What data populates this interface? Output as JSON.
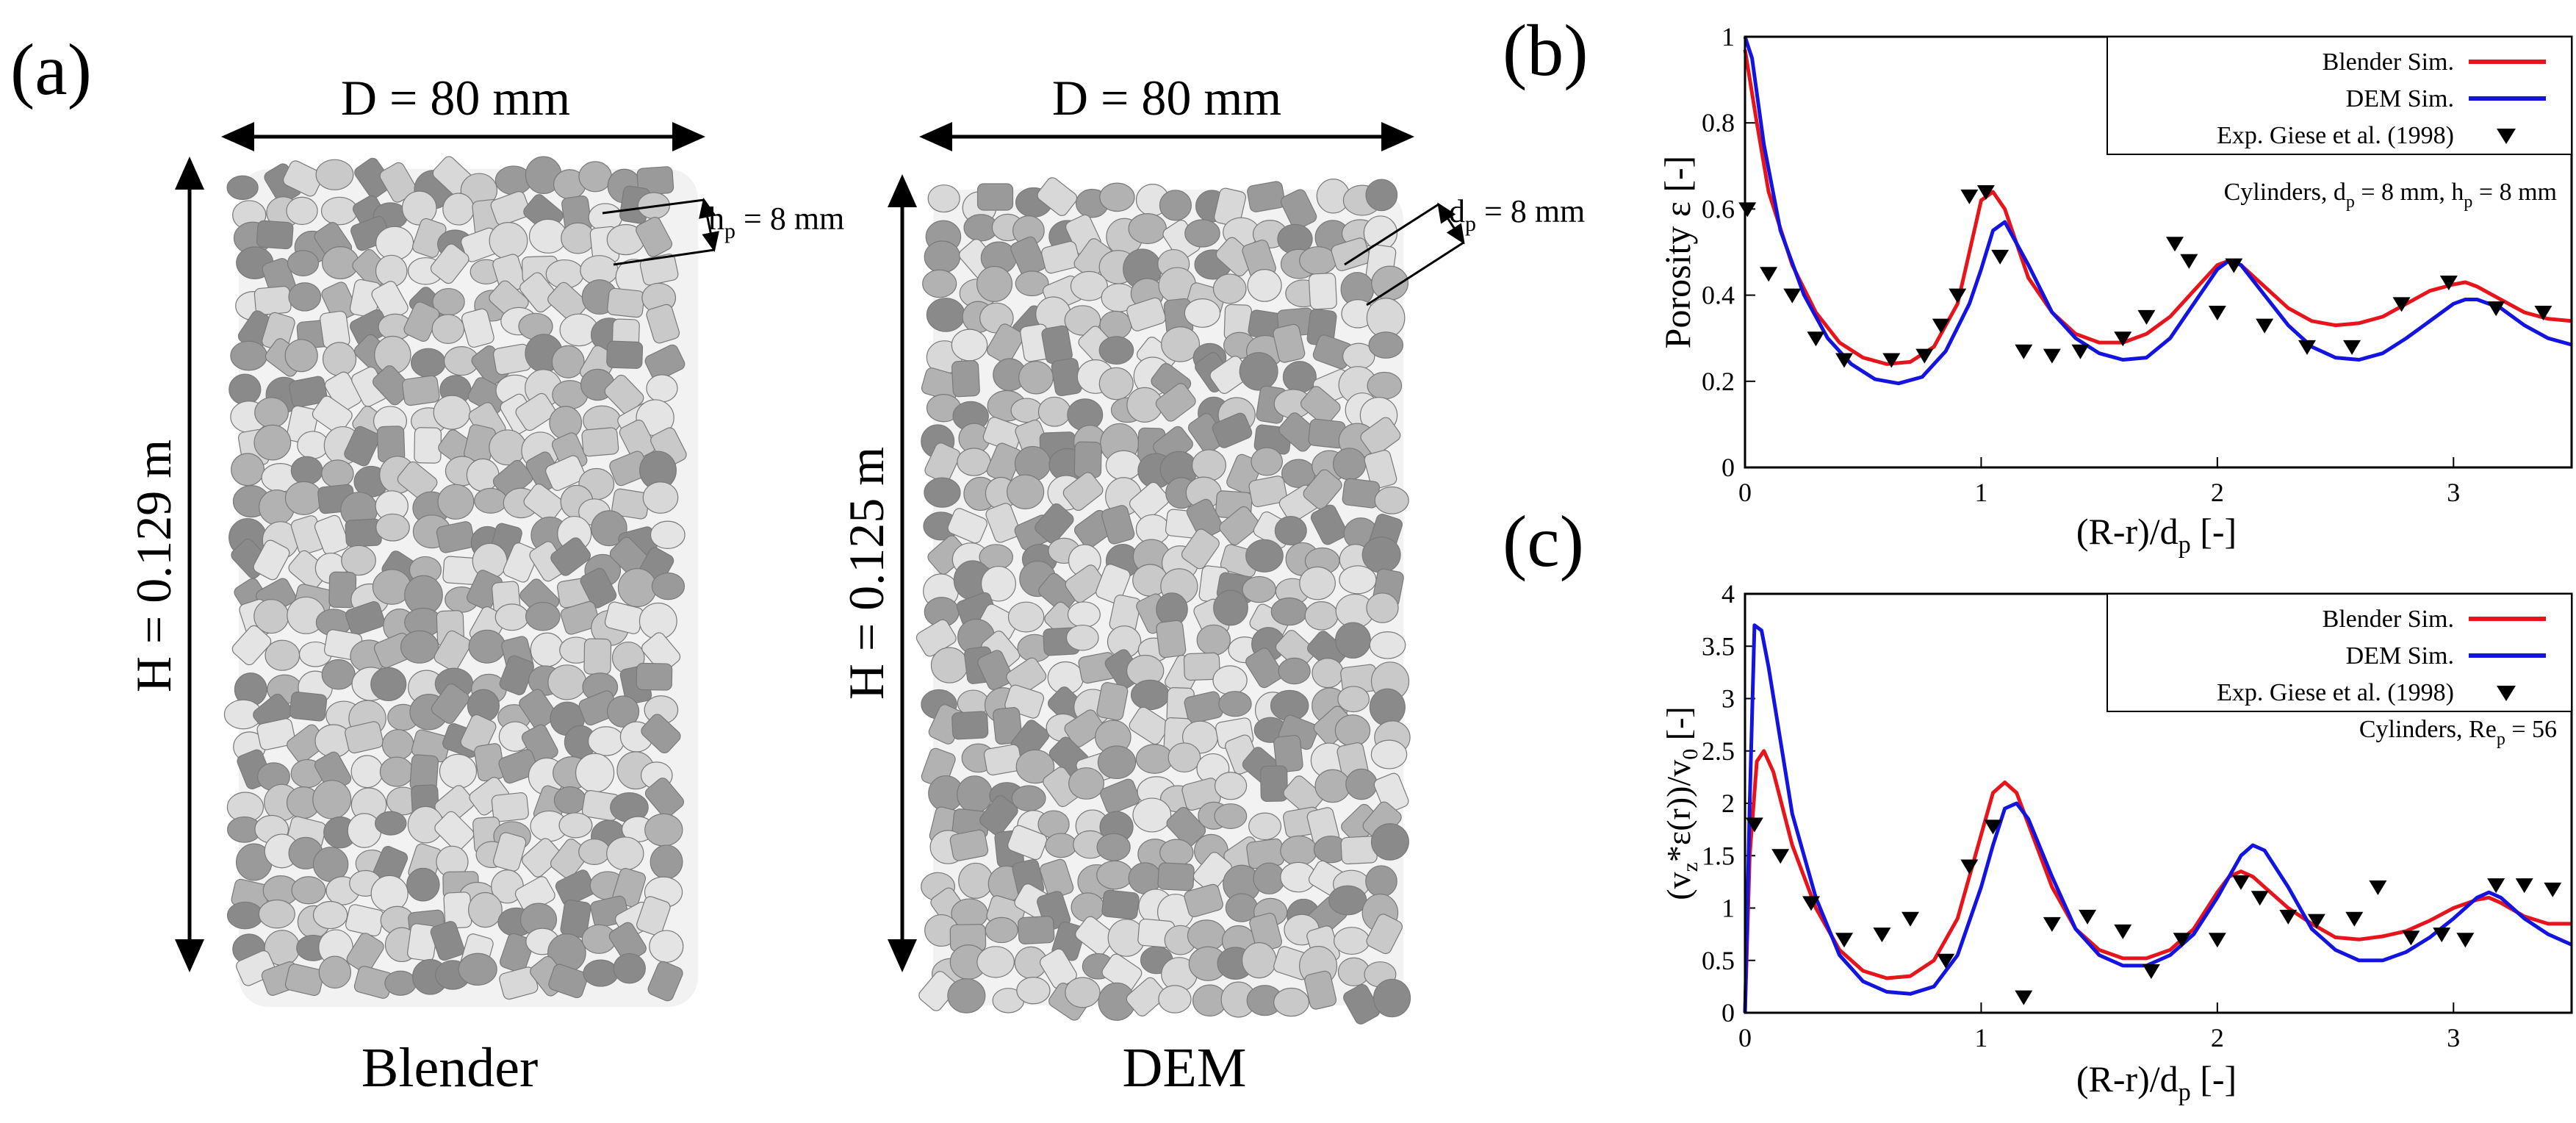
{
  "panel_a": {
    "label": "(a)",
    "blender": {
      "title": "Blender",
      "diameter": "D = 80 mm",
      "height": "H = 0.129 m",
      "particle_dim_prefix": "h",
      "particle_dim_sub": "p",
      "particle_dim_value": " = 8 mm"
    },
    "dem": {
      "title": "DEM",
      "diameter": "D = 80 mm",
      "height": "H = 0.125 m",
      "particle_dim_prefix": "d",
      "particle_dim_sub": "p",
      "particle_dim_value": " = 8 mm"
    },
    "particle_colors": [
      "#e4e4e4",
      "#c9c9c9",
      "#b2b2b2",
      "#9a9a9a",
      "#d8d8d8",
      "#8a8a8a"
    ]
  },
  "chart_data": [
    {
      "type": "line",
      "label": "(b)",
      "ylabel": "Porosity ε [-]",
      "xlabel_main": "(R-r)/d",
      "xlabel_sub": "p",
      "xlabel_tail": " [-]",
      "xlim": [
        0,
        3.5
      ],
      "ylim": [
        0,
        1
      ],
      "xticks": [
        0,
        1,
        2,
        3
      ],
      "yticks": [
        0,
        0.2,
        0.4,
        0.6,
        0.8,
        1
      ],
      "ytick_labels": [
        "0",
        "0.2",
        "0.4",
        "0.6",
        "0.8",
        "1"
      ],
      "legend": {
        "entries": [
          "Blender Sim.",
          "DEM Sim.",
          "Exp. Giese et al. (1998)"
        ],
        "placement": "top-right"
      },
      "annotation": {
        "parts": [
          "Cylinders, d",
          "p",
          " = 8 mm, h",
          "p",
          " = 8 mm"
        ]
      },
      "series": [
        {
          "name": "Blender Sim.",
          "color": "#e8141b",
          "x": [
            0,
            0.05,
            0.1,
            0.2,
            0.3,
            0.4,
            0.5,
            0.6,
            0.7,
            0.8,
            0.9,
            0.95,
            1.0,
            1.05,
            1.1,
            1.2,
            1.3,
            1.4,
            1.5,
            1.6,
            1.7,
            1.8,
            1.9,
            2.0,
            2.05,
            2.1,
            2.2,
            2.3,
            2.4,
            2.5,
            2.6,
            2.7,
            2.8,
            2.9,
            3.0,
            3.05,
            3.1,
            3.2,
            3.3,
            3.4,
            3.5
          ],
          "y": [
            0.97,
            0.8,
            0.64,
            0.47,
            0.36,
            0.29,
            0.255,
            0.24,
            0.245,
            0.28,
            0.38,
            0.5,
            0.62,
            0.64,
            0.6,
            0.44,
            0.36,
            0.31,
            0.29,
            0.29,
            0.31,
            0.35,
            0.41,
            0.47,
            0.48,
            0.47,
            0.42,
            0.37,
            0.34,
            0.33,
            0.335,
            0.35,
            0.38,
            0.41,
            0.425,
            0.43,
            0.42,
            0.39,
            0.36,
            0.345,
            0.34
          ]
        },
        {
          "name": "DEM Sim.",
          "color": "#1414e0",
          "x": [
            0,
            0.03,
            0.08,
            0.15,
            0.25,
            0.35,
            0.45,
            0.55,
            0.65,
            0.75,
            0.85,
            0.95,
            1.0,
            1.05,
            1.1,
            1.2,
            1.3,
            1.4,
            1.5,
            1.6,
            1.7,
            1.8,
            1.9,
            2.0,
            2.05,
            2.1,
            2.2,
            2.3,
            2.4,
            2.5,
            2.6,
            2.7,
            2.8,
            2.9,
            3.0,
            3.05,
            3.1,
            3.2,
            3.3,
            3.4,
            3.5
          ],
          "y": [
            1.0,
            0.95,
            0.75,
            0.55,
            0.4,
            0.3,
            0.24,
            0.205,
            0.195,
            0.21,
            0.27,
            0.38,
            0.46,
            0.55,
            0.57,
            0.47,
            0.36,
            0.3,
            0.265,
            0.25,
            0.255,
            0.3,
            0.38,
            0.46,
            0.48,
            0.47,
            0.4,
            0.33,
            0.28,
            0.255,
            0.25,
            0.265,
            0.3,
            0.34,
            0.38,
            0.39,
            0.39,
            0.37,
            0.33,
            0.3,
            0.285
          ]
        },
        {
          "name": "Exp. Giese et al. (1998)",
          "color": "#000000",
          "marker": "triangle-down",
          "x": [
            0.01,
            0.1,
            0.2,
            0.3,
            0.42,
            0.62,
            0.76,
            0.83,
            0.9,
            0.95,
            1.02,
            1.08,
            1.18,
            1.3,
            1.42,
            1.6,
            1.7,
            1.82,
            1.88,
            2.0,
            2.07,
            2.2,
            2.38,
            2.57,
            2.78,
            2.98,
            3.18,
            3.38
          ],
          "y": [
            0.6,
            0.45,
            0.4,
            0.3,
            0.25,
            0.25,
            0.26,
            0.33,
            0.4,
            0.63,
            0.64,
            0.49,
            0.27,
            0.26,
            0.27,
            0.3,
            0.35,
            0.52,
            0.48,
            0.36,
            0.47,
            0.33,
            0.28,
            0.28,
            0.38,
            0.43,
            0.37,
            0.36
          ]
        }
      ]
    },
    {
      "type": "line",
      "label": "(c)",
      "ylabel_parts": [
        "(v",
        "z",
        "*ε(r))/v",
        "0",
        " [-]"
      ],
      "xlabel_main": "(R-r)/d",
      "xlabel_sub": "p",
      "xlabel_tail": " [-]",
      "xlim": [
        0,
        3.5
      ],
      "ylim": [
        0,
        4
      ],
      "xticks": [
        0,
        1,
        2,
        3
      ],
      "yticks": [
        0,
        0.5,
        1,
        1.5,
        2,
        2.5,
        3,
        3.5,
        4
      ],
      "ytick_labels": [
        "0",
        "0.5",
        "1",
        "1.5",
        "2",
        "2.5",
        "3",
        "3.5",
        "4"
      ],
      "legend": {
        "entries": [
          "Blender Sim.",
          "DEM Sim.",
          "Exp. Giese et al. (1998)"
        ],
        "placement": "top-right"
      },
      "annotation": {
        "parts": [
          "Cylinders, Re",
          "p",
          " = 56"
        ]
      },
      "series": [
        {
          "name": "Blender Sim.",
          "color": "#e8141b",
          "x": [
            0,
            0.02,
            0.05,
            0.08,
            0.12,
            0.2,
            0.3,
            0.4,
            0.5,
            0.6,
            0.7,
            0.8,
            0.9,
            1.0,
            1.05,
            1.1,
            1.15,
            1.2,
            1.3,
            1.4,
            1.5,
            1.6,
            1.7,
            1.8,
            1.9,
            2.0,
            2.05,
            2.1,
            2.15,
            2.2,
            2.3,
            2.4,
            2.5,
            2.6,
            2.7,
            2.8,
            2.9,
            3.0,
            3.1,
            3.15,
            3.2,
            3.3,
            3.4,
            3.5
          ],
          "y": [
            0,
            1.5,
            2.4,
            2.5,
            2.3,
            1.6,
            1.0,
            0.6,
            0.4,
            0.33,
            0.35,
            0.5,
            0.9,
            1.7,
            2.1,
            2.2,
            2.1,
            1.8,
            1.2,
            0.8,
            0.6,
            0.52,
            0.52,
            0.6,
            0.8,
            1.15,
            1.3,
            1.35,
            1.3,
            1.2,
            1.0,
            0.85,
            0.72,
            0.7,
            0.73,
            0.78,
            0.88,
            1.0,
            1.08,
            1.1,
            1.05,
            0.92,
            0.85,
            0.85
          ]
        },
        {
          "name": "DEM Sim.",
          "color": "#1414e0",
          "x": [
            0,
            0.02,
            0.04,
            0.07,
            0.1,
            0.15,
            0.2,
            0.3,
            0.4,
            0.5,
            0.6,
            0.7,
            0.8,
            0.9,
            1.0,
            1.05,
            1.1,
            1.15,
            1.2,
            1.3,
            1.4,
            1.5,
            1.6,
            1.7,
            1.8,
            1.9,
            2.0,
            2.05,
            2.1,
            2.15,
            2.2,
            2.3,
            2.4,
            2.5,
            2.6,
            2.7,
            2.8,
            2.9,
            3.0,
            3.1,
            3.15,
            3.2,
            3.3,
            3.4,
            3.5
          ],
          "y": [
            0,
            2.0,
            3.7,
            3.65,
            3.3,
            2.6,
            1.9,
            1.1,
            0.55,
            0.3,
            0.2,
            0.18,
            0.25,
            0.55,
            1.2,
            1.6,
            1.95,
            2.0,
            1.85,
            1.3,
            0.8,
            0.55,
            0.45,
            0.45,
            0.55,
            0.75,
            1.1,
            1.3,
            1.5,
            1.6,
            1.55,
            1.2,
            0.8,
            0.6,
            0.5,
            0.5,
            0.58,
            0.72,
            0.9,
            1.1,
            1.15,
            1.1,
            0.9,
            0.75,
            0.65
          ]
        },
        {
          "name": "Exp. Giese et al. (1998)",
          "color": "#000000",
          "marker": "triangle-down",
          "x": [
            0.04,
            0.15,
            0.28,
            0.42,
            0.58,
            0.7,
            0.85,
            0.95,
            1.05,
            1.18,
            1.3,
            1.45,
            1.6,
            1.72,
            1.85,
            2.0,
            2.1,
            2.18,
            2.3,
            2.42,
            2.58,
            2.68,
            2.82,
            2.95,
            3.05,
            3.18,
            3.3,
            3.42
          ],
          "y": [
            1.8,
            1.5,
            1.05,
            0.7,
            0.75,
            0.9,
            0.5,
            1.4,
            1.78,
            0.15,
            0.85,
            0.92,
            0.78,
            0.4,
            0.7,
            0.7,
            1.25,
            1.1,
            0.92,
            0.88,
            0.9,
            1.2,
            0.72,
            0.75,
            0.7,
            1.22,
            1.22,
            1.18
          ]
        }
      ]
    }
  ]
}
